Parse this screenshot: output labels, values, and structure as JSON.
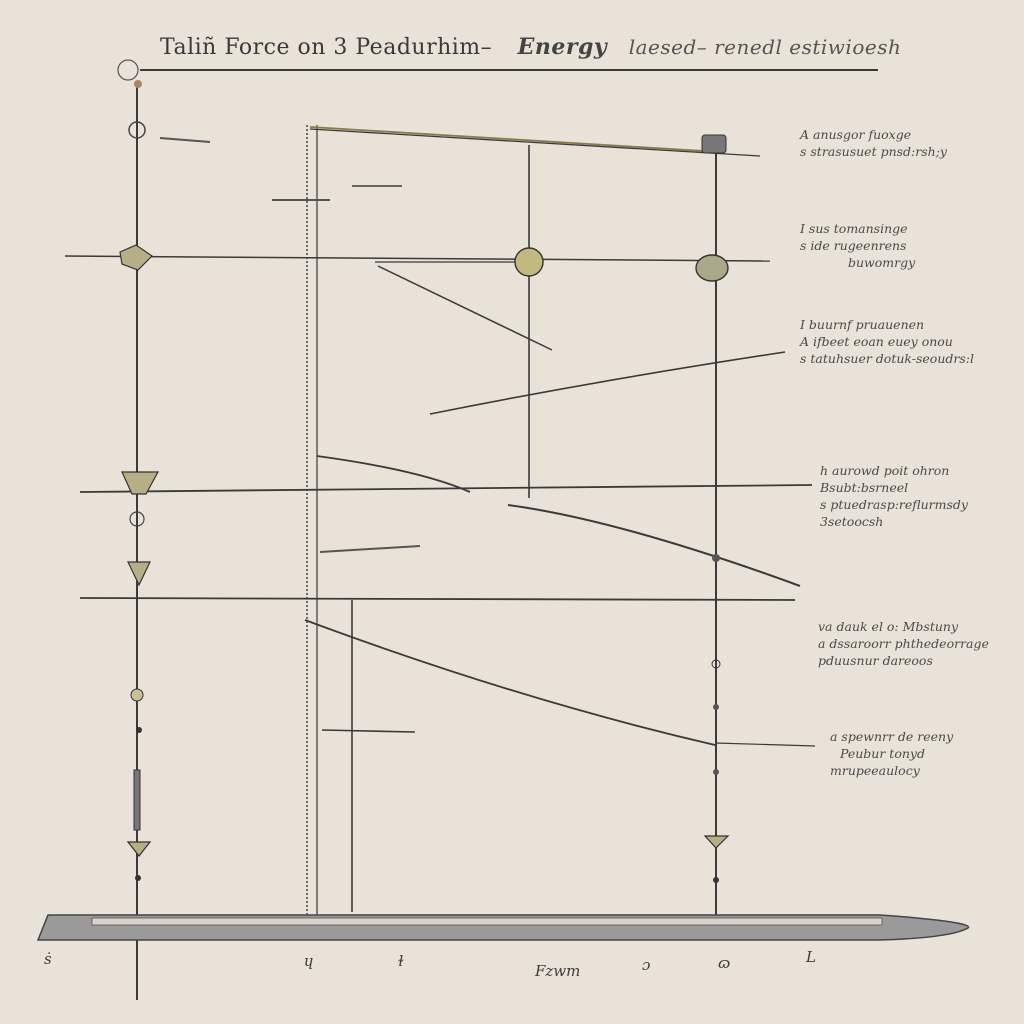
{
  "title": {
    "part1": "Taliñ Force on 3 Peadurhim–",
    "part2": "Energy",
    "part3": "laesed– renedl estiwioesh"
  },
  "notes": [
    [
      "A anusgor fuoxge",
      "s strasusuet pnsd:rsh;y"
    ],
    [
      "I sus  tomansinge",
      "s ide rugeenrens",
      "buwomrgy"
    ],
    [
      "I buurnf pruauenen",
      "A ifbeet eoan euey onou",
      "s tatuhsuer dotuk-seoudrs:l"
    ],
    [
      "h aurowd poit ohron",
      "Bsubt:bsrneel",
      "s ptuedrasp:reflurmsdy",
      "3setoocsh"
    ],
    [
      "va dauk el o: Mbstuny",
      "a dssaroorr phthedeorrage",
      "pduusnur dareoos"
    ],
    [
      "a spewnrr de reeny",
      "Peubur tonyd",
      "mrupeeaulocy"
    ]
  ],
  "bottom_labels": [
    "ṡ",
    "ɥ",
    "ɫ",
    "Fzwm",
    "ɔ",
    "ɷ",
    "L"
  ],
  "colors": {
    "background": "#e8e2d8",
    "ink": "#3a3a3a",
    "bob": "#b5ae86",
    "ground": "#9a9a9a"
  }
}
